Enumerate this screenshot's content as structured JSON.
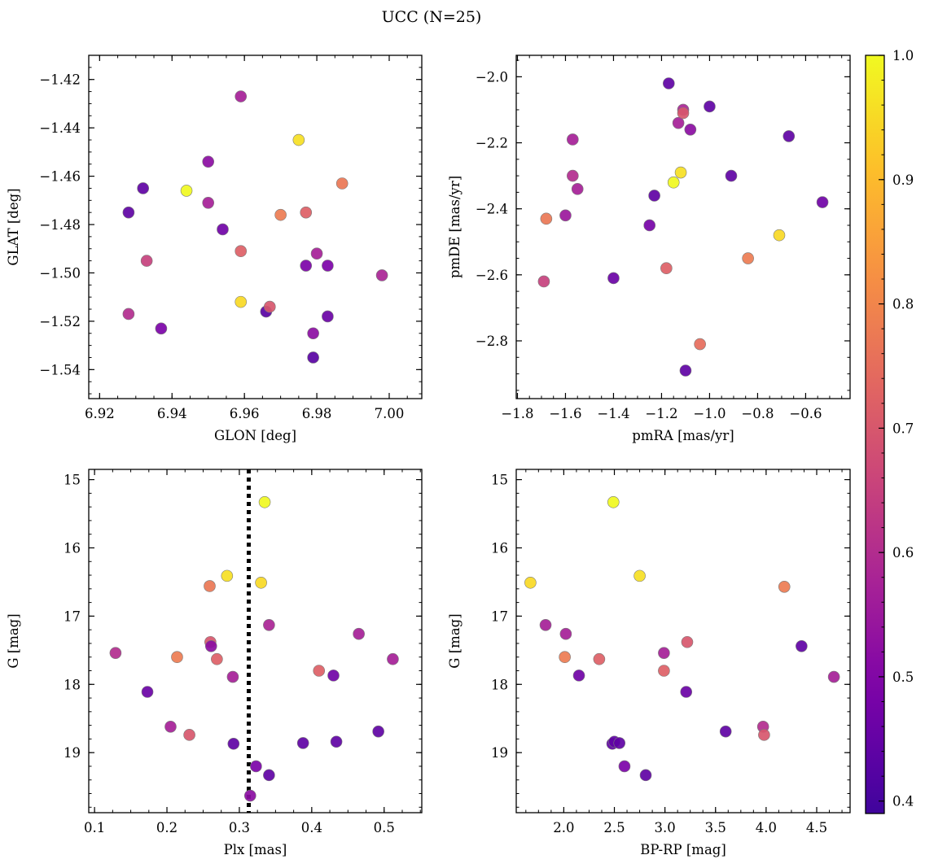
{
  "figure": {
    "title": "UCC (N=25)"
  },
  "colors": {
    "marker_edge": "#7a7a7a",
    "vline": "#000000",
    "colormap": "plasma"
  },
  "chart_data": [
    {
      "type": "scatter",
      "xlabel": "GLON [deg]",
      "ylabel": "GLAT [deg]",
      "xlim": [
        6.917,
        7.009
      ],
      "ylim": [
        -1.552,
        -1.41
      ],
      "xticks": [
        6.92,
        6.94,
        6.96,
        6.98,
        7.0
      ],
      "xtick_labels": [
        "6.92",
        "6.94",
        "6.96",
        "6.98",
        "7.00"
      ],
      "yticks": [
        -1.42,
        -1.44,
        -1.46,
        -1.48,
        -1.5,
        -1.52,
        -1.54
      ],
      "ytick_labels": [
        "−1.42",
        "−1.44",
        "−1.46",
        "−1.48",
        "−1.50",
        "−1.52",
        "−1.54"
      ],
      "x": [
        6.959,
        6.975,
        6.944,
        6.987,
        6.97,
        6.977,
        6.95,
        6.932,
        6.928,
        6.95,
        6.954,
        6.959,
        6.933,
        6.98,
        6.977,
        6.983,
        6.998,
        6.928,
        6.959,
        6.966,
        6.967,
        6.937,
        6.983,
        6.979,
        6.979
      ],
      "y": [
        -1.427,
        -1.445,
        -1.466,
        -1.463,
        -1.476,
        -1.475,
        -1.454,
        -1.465,
        -1.475,
        -1.471,
        -1.482,
        -1.491,
        -1.495,
        -1.492,
        -1.497,
        -1.497,
        -1.501,
        -1.517,
        -1.512,
        -1.516,
        -1.514,
        -1.523,
        -1.518,
        -1.525,
        -1.535
      ],
      "c": [
        0.57,
        0.96,
        1.0,
        0.77,
        0.78,
        0.72,
        0.52,
        0.44,
        0.44,
        0.57,
        0.47,
        0.72,
        0.65,
        0.57,
        0.49,
        0.49,
        0.58,
        0.6,
        0.95,
        0.43,
        0.7,
        0.49,
        0.46,
        0.52,
        0.43
      ]
    },
    {
      "type": "scatter",
      "xlabel": "pmRA [mas/yr]",
      "ylabel": "pmDE [mas/yr]",
      "xlim": [
        -1.805,
        -0.415
      ],
      "ylim": [
        -2.975,
        -1.935
      ],
      "xticks": [
        -1.8,
        -1.6,
        -1.4,
        -1.2,
        -1.0,
        -0.8,
        -0.6
      ],
      "xtick_labels": [
        "−1.8",
        "−1.6",
        "−1.4",
        "−1.2",
        "−1.0",
        "−0.8",
        "−0.6"
      ],
      "yticks": [
        -2.0,
        -2.2,
        -2.4,
        -2.6,
        -2.8
      ],
      "ytick_labels": [
        "−2.0",
        "−2.2",
        "−2.4",
        "−2.6",
        "−2.8"
      ],
      "x": [
        -1.17,
        -1.0,
        -1.11,
        -1.13,
        -1.08,
        -1.11,
        -0.67,
        -1.57,
        -1.57,
        -1.55,
        -1.23,
        -0.91,
        -1.12,
        -1.15,
        -1.6,
        -1.68,
        -1.25,
        -0.53,
        -0.71,
        -0.84,
        -1.18,
        -1.4,
        -1.69,
        -1.04,
        -1.1
      ],
      "y": [
        -2.02,
        -2.09,
        -2.1,
        -2.14,
        -2.16,
        -2.11,
        -2.18,
        -2.19,
        -2.3,
        -2.34,
        -2.36,
        -2.3,
        -2.29,
        -2.32,
        -2.42,
        -2.43,
        -2.45,
        -2.38,
        -2.48,
        -2.55,
        -2.58,
        -2.61,
        -2.62,
        -2.81,
        -2.89
      ],
      "c": [
        0.44,
        0.44,
        0.58,
        0.57,
        0.52,
        0.7,
        0.44,
        0.57,
        0.6,
        0.57,
        0.44,
        0.44,
        0.96,
        1.0,
        0.55,
        0.77,
        0.48,
        0.47,
        0.95,
        0.78,
        0.72,
        0.46,
        0.65,
        0.75,
        0.44
      ]
    },
    {
      "type": "scatter",
      "xlabel": "Plx [mas]",
      "ylabel": "G [mag]",
      "xlim": [
        0.092,
        0.552
      ],
      "ylim": [
        19.88,
        14.85
      ],
      "xticks": [
        0.1,
        0.2,
        0.3,
        0.4,
        0.5
      ],
      "xtick_labels": [
        "0.1",
        "0.2",
        "0.3",
        "0.4",
        "0.5"
      ],
      "yticks": [
        15,
        16,
        17,
        18,
        19
      ],
      "ytick_labels": [
        "15",
        "16",
        "17",
        "18",
        "19"
      ],
      "vline": 0.313,
      "x": [
        0.335,
        0.283,
        0.259,
        0.33,
        0.341,
        0.465,
        0.26,
        0.261,
        0.129,
        0.214,
        0.269,
        0.512,
        0.291,
        0.41,
        0.43,
        0.173,
        0.205,
        0.231,
        0.492,
        0.434,
        0.292,
        0.388,
        0.323,
        0.341,
        0.315
      ],
      "y": [
        15.33,
        16.41,
        16.56,
        16.51,
        17.13,
        17.26,
        17.38,
        17.44,
        17.54,
        17.6,
        17.63,
        17.63,
        17.89,
        17.8,
        17.87,
        18.11,
        18.62,
        18.74,
        18.69,
        18.84,
        18.87,
        18.86,
        19.2,
        19.33,
        19.63
      ],
      "c": [
        1.0,
        0.96,
        0.77,
        0.95,
        0.58,
        0.57,
        0.7,
        0.52,
        0.6,
        0.78,
        0.72,
        0.57,
        0.57,
        0.72,
        0.47,
        0.46,
        0.57,
        0.7,
        0.44,
        0.44,
        0.44,
        0.44,
        0.49,
        0.44,
        0.52
      ]
    },
    {
      "type": "scatter",
      "xlabel": "BP-RP [mag]",
      "ylabel": "G [mag]",
      "xlim": [
        1.53,
        4.83
      ],
      "ylim": [
        19.88,
        14.85
      ],
      "xticks": [
        2.0,
        2.5,
        3.0,
        3.5,
        4.0,
        4.5
      ],
      "xtick_labels": [
        "2.0",
        "2.5",
        "3.0",
        "3.5",
        "4.0",
        "4.5"
      ],
      "yticks": [
        15,
        16,
        17,
        18,
        19
      ],
      "ytick_labels": [
        "15",
        "16",
        "17",
        "18",
        "19"
      ],
      "x": [
        2.49,
        2.75,
        4.18,
        1.67,
        1.82,
        2.02,
        3.22,
        4.35,
        2.99,
        2.01,
        2.35,
        4.67,
        2.15,
        2.99,
        3.21,
        3.6,
        3.97,
        3.98,
        2.48,
        2.5,
        2.55,
        2.6,
        2.81
      ],
      "y": [
        15.33,
        16.41,
        16.57,
        16.51,
        17.13,
        17.26,
        17.38,
        17.44,
        17.54,
        17.6,
        17.63,
        17.89,
        17.87,
        17.8,
        18.11,
        18.69,
        18.62,
        18.74,
        18.87,
        18.84,
        18.86,
        19.2,
        19.33
      ],
      "c": [
        1.0,
        0.96,
        0.78,
        0.95,
        0.57,
        0.57,
        0.7,
        0.44,
        0.57,
        0.78,
        0.72,
        0.57,
        0.47,
        0.72,
        0.46,
        0.44,
        0.6,
        0.7,
        0.44,
        0.44,
        0.44,
        0.49,
        0.44
      ]
    }
  ],
  "colorbar": {
    "range": [
      0.39,
      1.0
    ],
    "ticks": [
      0.4,
      0.5,
      0.6,
      0.7,
      0.8,
      0.9,
      1.0
    ],
    "tick_labels": [
      "0.4",
      "0.5",
      "0.6",
      "0.7",
      "0.8",
      "0.9",
      "1.0"
    ]
  }
}
